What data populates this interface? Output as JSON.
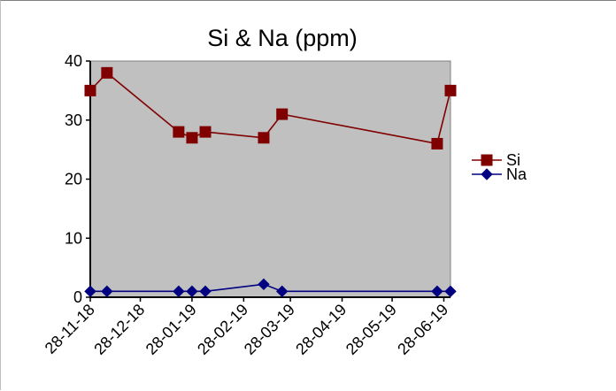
{
  "chart_data": {
    "type": "line",
    "title": "Si & Na (ppm)",
    "xlabel": "",
    "ylabel": "",
    "x_ticks": [
      "28-11-18",
      "28-12-18",
      "28-01-19",
      "28-02-19",
      "28-03-19",
      "28-04-19",
      "28-05-19",
      "28-06-19"
    ],
    "xlim": [
      "2018-11-28",
      "2019-07-02"
    ],
    "ylim": [
      0,
      40
    ],
    "y_ticks": [
      0,
      10,
      20,
      30,
      40
    ],
    "grid": false,
    "legend_position": "right",
    "plot_background": "#c0c0c0",
    "series": [
      {
        "name": "Si",
        "color": "#800000",
        "marker": "square",
        "points": [
          {
            "x": "2018-11-28",
            "y": 35
          },
          {
            "x": "2018-12-08",
            "y": 38
          },
          {
            "x": "2019-01-20",
            "y": 28
          },
          {
            "x": "2019-01-28",
            "y": 27
          },
          {
            "x": "2019-02-05",
            "y": 28
          },
          {
            "x": "2019-03-12",
            "y": 27
          },
          {
            "x": "2019-03-23",
            "y": 31
          },
          {
            "x": "2019-06-24",
            "y": 26
          },
          {
            "x": "2019-07-02",
            "y": 35
          }
        ]
      },
      {
        "name": "Na",
        "color": "#000080",
        "marker": "diamond",
        "points": [
          {
            "x": "2018-11-28",
            "y": 1
          },
          {
            "x": "2018-12-08",
            "y": 1
          },
          {
            "x": "2019-01-20",
            "y": 1
          },
          {
            "x": "2019-01-28",
            "y": 1
          },
          {
            "x": "2019-02-05",
            "y": 1
          },
          {
            "x": "2019-03-12",
            "y": 2.2
          },
          {
            "x": "2019-03-23",
            "y": 1
          },
          {
            "x": "2019-06-24",
            "y": 1
          },
          {
            "x": "2019-07-02",
            "y": 1
          }
        ]
      }
    ]
  }
}
